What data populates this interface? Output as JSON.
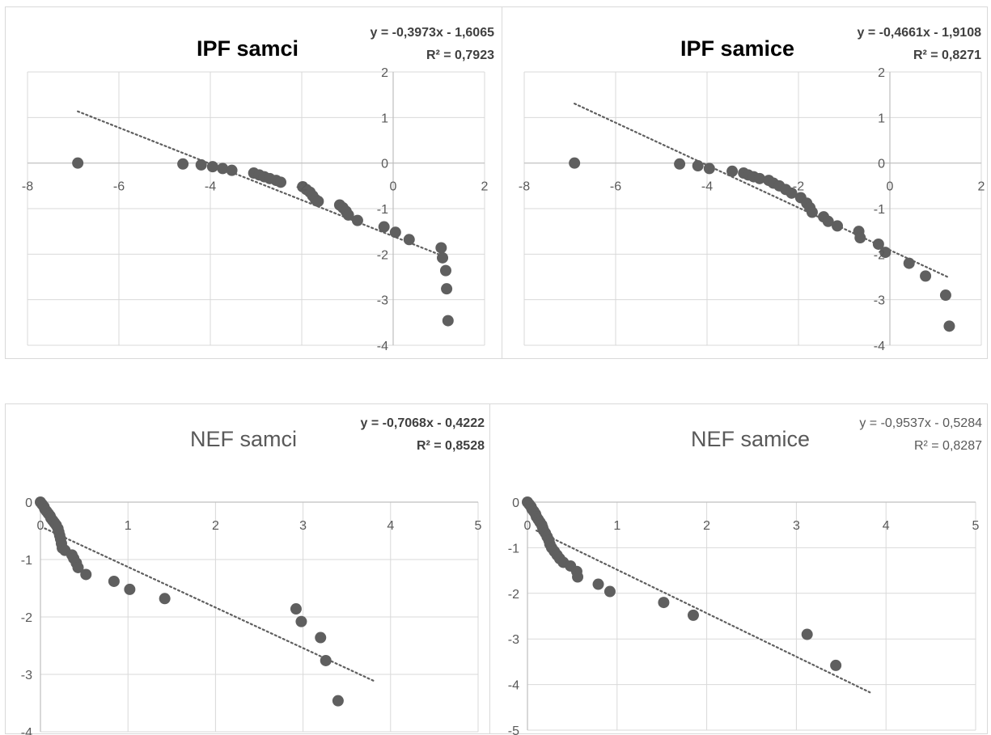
{
  "colors": {
    "marker": "#5f5f5f",
    "trendline": "#5f5f5f",
    "gridline": "#d9d9d9",
    "axis": "#bfbfbf",
    "tick_text": "#595959"
  },
  "chart_data": [
    {
      "type": "scatter",
      "title": "IPF samci",
      "equation": "y = -0,3973x - 1,6065",
      "r2": "R² = 0,7923",
      "xlim": [
        -8,
        2
      ],
      "ylim": [
        -4,
        2
      ],
      "x_ticks": [
        -8,
        -6,
        -4,
        -2,
        0,
        2
      ],
      "y_ticks": [
        -4,
        -3,
        -2,
        -1,
        0,
        1,
        2
      ],
      "x_tick_labels": [
        "-8",
        "-6",
        "-4",
        "-2",
        "0",
        "2"
      ],
      "y_tick_labels": [
        "-4",
        "-3",
        "-2",
        "-1",
        "0",
        "1",
        "2"
      ],
      "grid": true,
      "axis_crossing": "origin",
      "trendline": {
        "type": "linear",
        "slope": -0.3973,
        "intercept": -1.6065,
        "x_range": [
          -6.9,
          1.18
        ],
        "style": "dotted"
      },
      "points": [
        [
          -6.9,
          0
        ],
        [
          -4.6,
          -0.02
        ],
        [
          -4.2,
          -0.04
        ],
        [
          -3.95,
          -0.08
        ],
        [
          -3.73,
          -0.12
        ],
        [
          -3.53,
          -0.16
        ],
        [
          -3.05,
          -0.22
        ],
        [
          -2.93,
          -0.26
        ],
        [
          -2.82,
          -0.3
        ],
        [
          -2.7,
          -0.34
        ],
        [
          -2.56,
          -0.38
        ],
        [
          -2.46,
          -0.42
        ],
        [
          -1.98,
          -0.52
        ],
        [
          -1.9,
          -0.58
        ],
        [
          -1.82,
          -0.64
        ],
        [
          -1.76,
          -0.72
        ],
        [
          -1.7,
          -0.8
        ],
        [
          -1.64,
          -0.84
        ],
        [
          -1.17,
          -0.92
        ],
        [
          -1.1,
          -0.98
        ],
        [
          -1.03,
          -1.06
        ],
        [
          -0.98,
          -1.14
        ],
        [
          -0.78,
          -1.26
        ],
        [
          -0.2,
          -1.4
        ],
        [
          0.05,
          -1.52
        ],
        [
          0.35,
          -1.68
        ],
        [
          1.05,
          -1.86
        ],
        [
          1.08,
          -2.08
        ],
        [
          1.15,
          -2.36
        ],
        [
          1.17,
          -2.76
        ],
        [
          1.2,
          -3.46
        ]
      ]
    },
    {
      "type": "scatter",
      "title": "IPF samice",
      "equation": "y = -0,4661x - 1,9108",
      "r2": "R² = 0,8271",
      "xlim": [
        -8,
        2
      ],
      "ylim": [
        -4,
        2
      ],
      "x_ticks": [
        -8,
        -6,
        -4,
        -2,
        0,
        2
      ],
      "y_ticks": [
        -4,
        -3,
        -2,
        -1,
        0,
        1,
        2
      ],
      "x_tick_labels": [
        "-8",
        "-6",
        "-4",
        "-2",
        "0",
        "2"
      ],
      "y_tick_labels": [
        "-4",
        "-3",
        "-2",
        "-1",
        "0",
        "1",
        "2"
      ],
      "grid": true,
      "axis_crossing": "origin",
      "trendline": {
        "type": "linear",
        "slope": -0.4661,
        "intercept": -1.9108,
        "x_range": [
          -6.9,
          1.3
        ],
        "style": "dotted"
      },
      "points": [
        [
          -6.9,
          0
        ],
        [
          -4.6,
          -0.02
        ],
        [
          -4.2,
          -0.06
        ],
        [
          -3.95,
          -0.12
        ],
        [
          -3.45,
          -0.18
        ],
        [
          -3.2,
          -0.22
        ],
        [
          -3.1,
          -0.26
        ],
        [
          -2.98,
          -0.3
        ],
        [
          -2.85,
          -0.34
        ],
        [
          -2.65,
          -0.38
        ],
        [
          -2.55,
          -0.44
        ],
        [
          -2.42,
          -0.5
        ],
        [
          -2.28,
          -0.58
        ],
        [
          -2.15,
          -0.66
        ],
        [
          -1.95,
          -0.76
        ],
        [
          -1.82,
          -0.88
        ],
        [
          -1.75,
          -0.98
        ],
        [
          -1.7,
          -1.08
        ],
        [
          -1.45,
          -1.18
        ],
        [
          -1.35,
          -1.28
        ],
        [
          -1.15,
          -1.38
        ],
        [
          -0.68,
          -1.5
        ],
        [
          -0.65,
          -1.64
        ],
        [
          -0.25,
          -1.78
        ],
        [
          -0.1,
          -1.96
        ],
        [
          0.42,
          -2.2
        ],
        [
          0.78,
          -2.48
        ],
        [
          1.22,
          -2.9
        ],
        [
          1.3,
          -3.58
        ]
      ]
    },
    {
      "type": "scatter",
      "title": "NEF samci",
      "equation": "y = -0,7068x - 0,4222",
      "r2": "R² = 0,8528",
      "xlim": [
        0,
        5
      ],
      "ylim": [
        -4,
        0
      ],
      "x_ticks": [
        0,
        1,
        2,
        3,
        4,
        5
      ],
      "y_ticks": [
        -4,
        -3,
        -2,
        -1,
        0
      ],
      "x_tick_labels": [
        "0",
        "1",
        "2",
        "3",
        "4",
        "5"
      ],
      "y_tick_labels": [
        "-4",
        "-3",
        "-2",
        "-1",
        "0"
      ],
      "grid": true,
      "axis_crossing": "origin",
      "trendline": {
        "type": "linear",
        "slope": -0.7068,
        "intercept": -0.4222,
        "x_range": [
          0.05,
          3.82
        ],
        "style": "dotted"
      },
      "points": [
        [
          0.0,
          0
        ],
        [
          0.02,
          -0.04
        ],
        [
          0.04,
          -0.08
        ],
        [
          0.05,
          -0.12
        ],
        [
          0.07,
          -0.16
        ],
        [
          0.09,
          -0.2
        ],
        [
          0.11,
          -0.24
        ],
        [
          0.12,
          -0.28
        ],
        [
          0.14,
          -0.32
        ],
        [
          0.16,
          -0.36
        ],
        [
          0.18,
          -0.4
        ],
        [
          0.2,
          -0.46
        ],
        [
          0.21,
          -0.52
        ],
        [
          0.22,
          -0.58
        ],
        [
          0.23,
          -0.64
        ],
        [
          0.24,
          -0.72
        ],
        [
          0.25,
          -0.8
        ],
        [
          0.28,
          -0.84
        ],
        [
          0.36,
          -0.92
        ],
        [
          0.38,
          -0.98
        ],
        [
          0.41,
          -1.06
        ],
        [
          0.43,
          -1.14
        ],
        [
          0.52,
          -1.26
        ],
        [
          0.84,
          -1.38
        ],
        [
          1.02,
          -1.52
        ],
        [
          1.42,
          -1.68
        ],
        [
          2.92,
          -1.86
        ],
        [
          2.98,
          -2.08
        ],
        [
          3.2,
          -2.36
        ],
        [
          3.26,
          -2.76
        ],
        [
          3.4,
          -3.46
        ]
      ]
    },
    {
      "type": "scatter",
      "title": "NEF samice",
      "equation": "y = -0,9537x - 0,5284",
      "r2": "R² = 0,8287",
      "xlim": [
        0,
        5
      ],
      "ylim": [
        -5,
        0
      ],
      "x_ticks": [
        0,
        1,
        2,
        3,
        4,
        5
      ],
      "y_ticks": [
        -5,
        -4,
        -3,
        -2,
        -1,
        0
      ],
      "x_tick_labels": [
        "0",
        "1",
        "2",
        "3",
        "4",
        "5"
      ],
      "y_tick_labels": [
        "-5",
        "-4",
        "-3",
        "-2",
        "-1",
        "0"
      ],
      "grid": true,
      "axis_crossing": "origin",
      "trendline": {
        "type": "linear",
        "slope": -0.9537,
        "intercept": -0.5284,
        "x_range": [
          0.1,
          3.82
        ],
        "style": "dotted"
      },
      "points": [
        [
          0.0,
          0
        ],
        [
          0.02,
          -0.05
        ],
        [
          0.04,
          -0.1
        ],
        [
          0.05,
          -0.15
        ],
        [
          0.07,
          -0.2
        ],
        [
          0.09,
          -0.26
        ],
        [
          0.1,
          -0.32
        ],
        [
          0.12,
          -0.38
        ],
        [
          0.14,
          -0.44
        ],
        [
          0.16,
          -0.5
        ],
        [
          0.17,
          -0.56
        ],
        [
          0.18,
          -0.62
        ],
        [
          0.2,
          -0.68
        ],
        [
          0.22,
          -0.76
        ],
        [
          0.24,
          -0.84
        ],
        [
          0.25,
          -0.92
        ],
        [
          0.27,
          -1.0
        ],
        [
          0.3,
          -1.08
        ],
        [
          0.33,
          -1.16
        ],
        [
          0.36,
          -1.24
        ],
        [
          0.4,
          -1.32
        ],
        [
          0.48,
          -1.4
        ],
        [
          0.55,
          -1.52
        ],
        [
          0.56,
          -1.64
        ],
        [
          0.79,
          -1.8
        ],
        [
          0.92,
          -1.96
        ],
        [
          1.52,
          -2.2
        ],
        [
          1.85,
          -2.48
        ],
        [
          3.12,
          -2.9
        ],
        [
          3.44,
          -3.58
        ]
      ]
    }
  ]
}
